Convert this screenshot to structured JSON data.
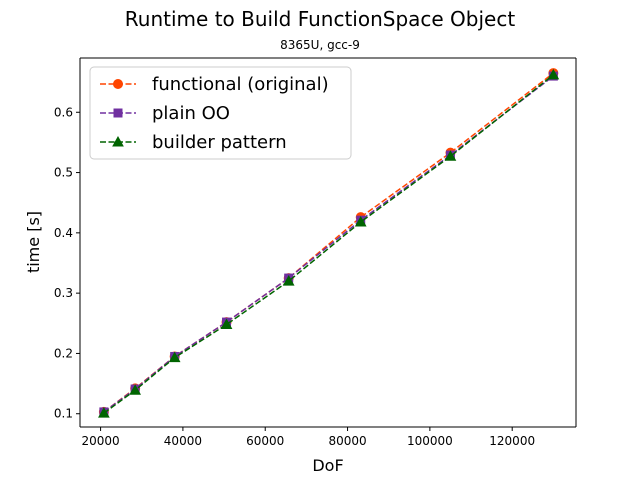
{
  "chart_data": {
    "type": "line",
    "title": "Runtime to Build FunctionSpace Object",
    "subtitle": "8365U, gcc-9",
    "xlabel": "DoF",
    "ylabel": "time [s]",
    "xlim": [
      15000,
      135500
    ],
    "ylim": [
      0.078,
      0.69
    ],
    "xticks": [
      20000,
      40000,
      60000,
      80000,
      100000,
      120000
    ],
    "yticks": [
      0.1,
      0.2,
      0.3,
      0.4,
      0.5,
      0.6
    ],
    "grid": false,
    "legend_position": "top-left",
    "x": [
      20800,
      28400,
      38000,
      50600,
      65700,
      83200,
      105000,
      130000
    ],
    "series": [
      {
        "name": "functional (original)",
        "color": "#ff4500",
        "marker": "circle",
        "line_style": "dashed",
        "values": [
          0.103,
          0.142,
          0.195,
          0.252,
          0.325,
          0.426,
          0.533,
          0.665
        ]
      },
      {
        "name": "plain OO",
        "color": "#7030a0",
        "marker": "square",
        "line_style": "dashed",
        "values": [
          0.103,
          0.141,
          0.195,
          0.252,
          0.325,
          0.421,
          0.529,
          0.66
        ]
      },
      {
        "name": "builder pattern",
        "color": "#006400",
        "marker": "triangle",
        "line_style": "dashed",
        "values": [
          0.101,
          0.139,
          0.193,
          0.248,
          0.32,
          0.418,
          0.527,
          0.662
        ]
      }
    ]
  }
}
